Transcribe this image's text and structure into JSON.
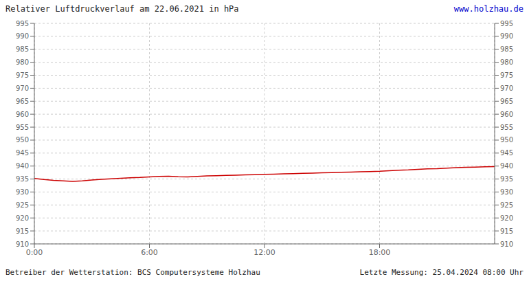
{
  "chart_data": {
    "type": "line",
    "title": "Relativer Luftdruckverlauf am 22.06.2021 in hPa",
    "annotations": [
      "www.holzhau.de",
      "Betreiber der Wetterstation: BCS Computersysteme Holzhau",
      "Letzte Messung: 25.04.2024 08:00 Uhr"
    ],
    "x": [
      0,
      30,
      60,
      90,
      120,
      150,
      180,
      210,
      240,
      270,
      300,
      330,
      360,
      390,
      420,
      450,
      480,
      510,
      540,
      570,
      600,
      630,
      660,
      690,
      720,
      750,
      780,
      810,
      840,
      870,
      900,
      930,
      960,
      990,
      1020,
      1050,
      1080,
      1110,
      1140,
      1170,
      1200,
      1230,
      1260,
      1290,
      1320,
      1350,
      1380,
      1410,
      1440
    ],
    "series": [
      {
        "color": "#cc0000",
        "values": [
          935.2,
          934.8,
          934.5,
          934.3,
          934.1,
          934.3,
          934.6,
          934.9,
          935.1,
          935.3,
          935.5,
          935.6,
          935.8,
          936.0,
          936.1,
          935.9,
          935.8,
          936.0,
          936.2,
          936.3,
          936.4,
          936.5,
          936.6,
          936.7,
          936.8,
          936.9,
          937.0,
          937.1,
          937.2,
          937.3,
          937.4,
          937.5,
          937.6,
          937.7,
          937.8,
          937.9,
          938.0,
          938.2,
          938.4,
          938.5,
          938.7,
          938.9,
          939.0,
          939.2,
          939.4,
          939.5,
          939.6,
          939.7,
          939.8
        ]
      }
    ],
    "xlim": [
      0,
      1440
    ],
    "xticks": [
      {
        "value": 0,
        "label": "0:00"
      },
      {
        "value": 360,
        "label": "6:00"
      },
      {
        "value": 720,
        "label": "12:00"
      },
      {
        "value": 1080,
        "label": "18:00"
      }
    ],
    "ylim": [
      910,
      995
    ],
    "yticks": [
      910,
      915,
      920,
      925,
      930,
      935,
      940,
      945,
      950,
      955,
      960,
      965,
      970,
      975,
      980,
      985,
      990,
      995
    ],
    "y2lim": [
      910,
      995
    ],
    "y2ticks": [
      910,
      915,
      920,
      925,
      930,
      935,
      940,
      945,
      950,
      955,
      960,
      965,
      970,
      975,
      980,
      985,
      990,
      995
    ],
    "grid": true
  }
}
